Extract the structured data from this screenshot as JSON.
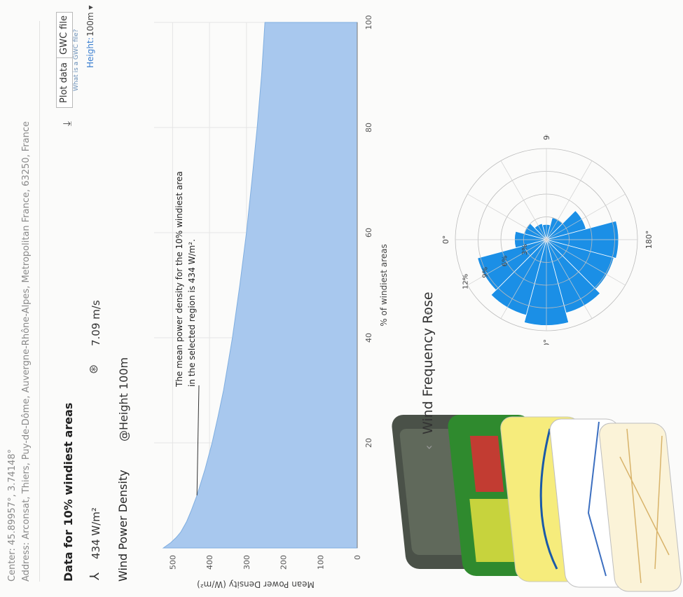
{
  "header": {
    "center": "Center: 45.89957°, 3.74148°",
    "address": "Address: Arconsat, Thiers, Puy-de-Dôme, Auvergne-Rhône-Alpes, Metropolitan France, 63250, France"
  },
  "summary": {
    "title": "Data for 10% windiest areas",
    "power_density": "434 W/m²",
    "wind_speed": "7.09 m/s"
  },
  "toolbar": {
    "plot_data": "Plot data",
    "gwc_file": "GWC file",
    "gwc_help": "What is a GWC file?",
    "height_label": "Height:",
    "height_value": "100m ▾"
  },
  "section": {
    "wpd_title": "Wind Power Density",
    "wpd_height": "@Height 100m",
    "rose_title": "Wind Frequency Rose",
    "rose_prev": "‹",
    "rose_next": "›"
  },
  "icons": {
    "turbine": "turbine-icon",
    "speed": "wind-speed-icon",
    "download": "download-icon"
  },
  "chart_data": [
    {
      "type": "area",
      "xlabel": "% of windiest areas",
      "ylabel": "Mean Power Density (W/m²)",
      "xlim": [
        0,
        100
      ],
      "ylim": [
        0,
        550
      ],
      "xticks": [
        20,
        40,
        60,
        80,
        100
      ],
      "yticks": [
        0,
        100,
        200,
        300,
        400,
        500
      ],
      "x": [
        0,
        1,
        2,
        3,
        5,
        7,
        10,
        15,
        20,
        25,
        30,
        40,
        50,
        60,
        70,
        80,
        90,
        100
      ],
      "y": [
        525,
        505,
        490,
        478,
        462,
        450,
        434,
        412,
        393,
        377,
        362,
        338,
        318,
        300,
        285,
        271,
        259,
        250
      ],
      "annotation": "The mean power density for the 10% windiest area in the selected region is 434 W/m².",
      "color": "#a8c8ee",
      "grid": true
    },
    {
      "type": "polar-bar",
      "title": "Wind Frequency Rose",
      "angle_labels": [
        "0°",
        "90°",
        "180°",
        "270°"
      ],
      "radial_labels": [
        "3%",
        "6%",
        "9%",
        "12%"
      ],
      "sectors_deg": [
        0,
        30,
        60,
        90,
        120,
        150,
        180,
        210,
        240,
        270,
        300,
        330
      ],
      "values_pct": [
        4.2,
        3.0,
        2.2,
        2.0,
        3.0,
        5.4,
        9.5,
        9.2,
        10.0,
        11.3,
        10.3,
        9.4
      ],
      "color": "#1b8fe6"
    }
  ]
}
